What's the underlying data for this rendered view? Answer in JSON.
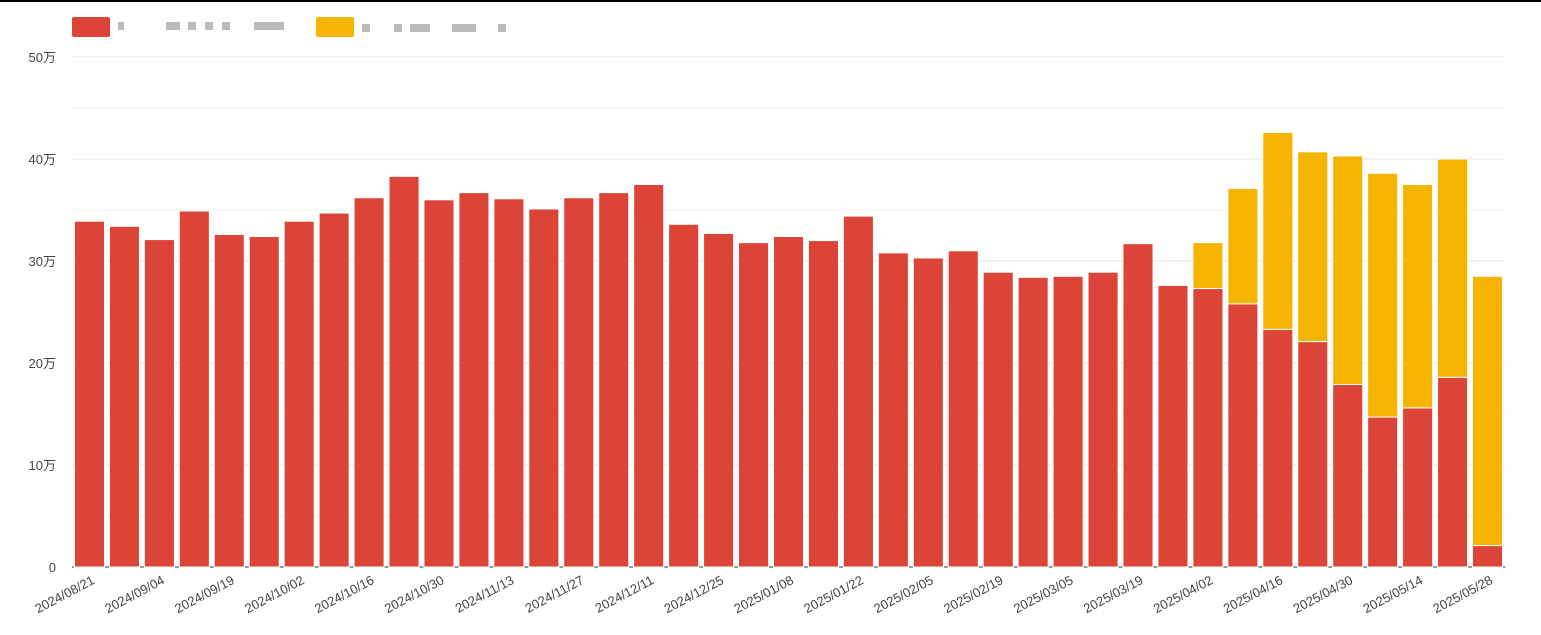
{
  "chart_data": {
    "type": "stacked_bar",
    "categories": [
      "2024/08/21",
      null,
      "2024/09/04",
      null,
      "2024/09/19",
      null,
      "2024/10/02",
      null,
      "2024/10/16",
      null,
      "2024/10/30",
      null,
      "2024/11/13",
      null,
      "2024/11/27",
      null,
      "2024/12/11",
      null,
      "2024/12/25",
      null,
      "2025/01/08",
      null,
      "2025/01/22",
      null,
      "2025/02/05",
      null,
      "2025/02/19",
      null,
      "2025/03/05",
      null,
      "2025/03/19",
      null,
      "2025/04/02",
      null,
      "2025/04/16",
      null,
      "2025/04/30",
      null,
      "2025/05/14",
      null,
      "2025/05/28"
    ],
    "series": [
      {
        "color": "#db4437",
        "values": [
          339000,
          334000,
          321000,
          349000,
          326000,
          324000,
          339000,
          347000,
          362000,
          383000,
          360000,
          367000,
          361000,
          351000,
          362000,
          367000,
          375000,
          336000,
          327000,
          318000,
          324000,
          320000,
          344000,
          308000,
          303000,
          310000,
          289000,
          284000,
          285000,
          289000,
          317000,
          276000,
          273000,
          258000,
          233000,
          221000,
          179000,
          147000,
          156000,
          186000,
          21000
        ]
      },
      {
        "color": "#f4b400",
        "values": [
          0,
          0,
          0,
          0,
          0,
          0,
          0,
          0,
          0,
          0,
          0,
          0,
          0,
          0,
          0,
          0,
          0,
          0,
          0,
          0,
          0,
          0,
          0,
          0,
          0,
          0,
          0,
          0,
          0,
          0,
          0,
          0,
          45000,
          113000,
          193000,
          186000,
          224000,
          239000,
          219000,
          214000,
          264000
        ]
      }
    ],
    "ylim": [
      0,
      500000
    ],
    "yticks": [
      0,
      {
        "value": 100000,
        "label": "10万"
      },
      {
        "value": 200000,
        "label": "20万"
      },
      {
        "value": 300000,
        "label": "30万"
      },
      {
        "value": 400000,
        "label": "40万"
      },
      {
        "value": 500000,
        "label": "50万"
      }
    ],
    "y_minor_gridlines": [
      50000,
      150000,
      250000,
      350000,
      450000
    ],
    "grid": true
  }
}
